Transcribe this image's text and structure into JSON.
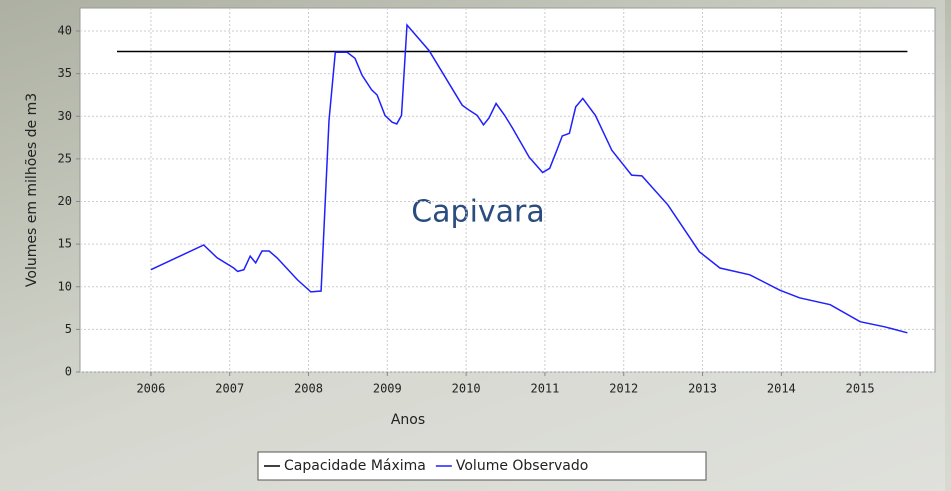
{
  "chart_data": {
    "type": "line",
    "annotation": "Capivara",
    "xlabel": "Anos",
    "ylabel": "Volumes em milhões de m3",
    "xlim": [
      2005.1,
      2015.95
    ],
    "xticks": [
      2006,
      2007,
      2008,
      2009,
      2010,
      2011,
      2012,
      2013,
      2014,
      2015
    ],
    "ylim": [
      0,
      42.7
    ],
    "yticks": [
      0,
      5,
      10,
      15,
      20,
      25,
      30,
      35,
      40
    ],
    "grid": true,
    "legend": "bottom",
    "series": [
      {
        "name": "Capacidade Máxima",
        "color": "#000000",
        "x": [
          2005.57,
          2015.6
        ],
        "values": [
          37.6,
          37.6
        ]
      },
      {
        "name": "Volume Observado",
        "color": "#2020ff",
        "x": [
          2006.0,
          2006.67,
          2006.84,
          2007.05,
          2007.1,
          2007.18,
          2007.26,
          2007.33,
          2007.41,
          2007.5,
          2007.6,
          2007.86,
          2008.03,
          2008.16,
          2008.26,
          2008.34,
          2008.49,
          2008.59,
          2008.68,
          2008.8,
          2008.87,
          2008.97,
          2009.06,
          2009.12,
          2009.18,
          2009.25,
          2009.53,
          2009.95,
          2010.04,
          2010.14,
          2010.22,
          2010.29,
          2010.38,
          2010.49,
          2010.59,
          2010.8,
          2010.97,
          2011.06,
          2011.15,
          2011.22,
          2011.31,
          2011.39,
          2011.48,
          2011.64,
          2011.85,
          2011.97,
          2012.1,
          2012.23,
          2012.56,
          2012.96,
          2013.22,
          2013.6,
          2013.98,
          2014.23,
          2014.62,
          2015.0,
          2015.31,
          2015.6
        ],
        "values": [
          12.0,
          14.9,
          13.4,
          12.2,
          11.8,
          12.0,
          13.6,
          12.8,
          14.2,
          14.2,
          13.4,
          10.8,
          9.4,
          9.5,
          29.5,
          37.5,
          37.5,
          36.8,
          34.8,
          33.1,
          32.5,
          30.1,
          29.3,
          29.1,
          30.1,
          40.7,
          37.7,
          31.3,
          30.7,
          30.1,
          29.0,
          29.8,
          31.5,
          30.1,
          28.6,
          25.2,
          23.4,
          23.9,
          26.0,
          27.7,
          28.0,
          31.1,
          32.1,
          30.1,
          26.0,
          24.6,
          23.1,
          23.0,
          19.6,
          14.1,
          12.2,
          11.4,
          9.6,
          8.7,
          7.9,
          5.9,
          5.3,
          4.6
        ]
      }
    ]
  }
}
